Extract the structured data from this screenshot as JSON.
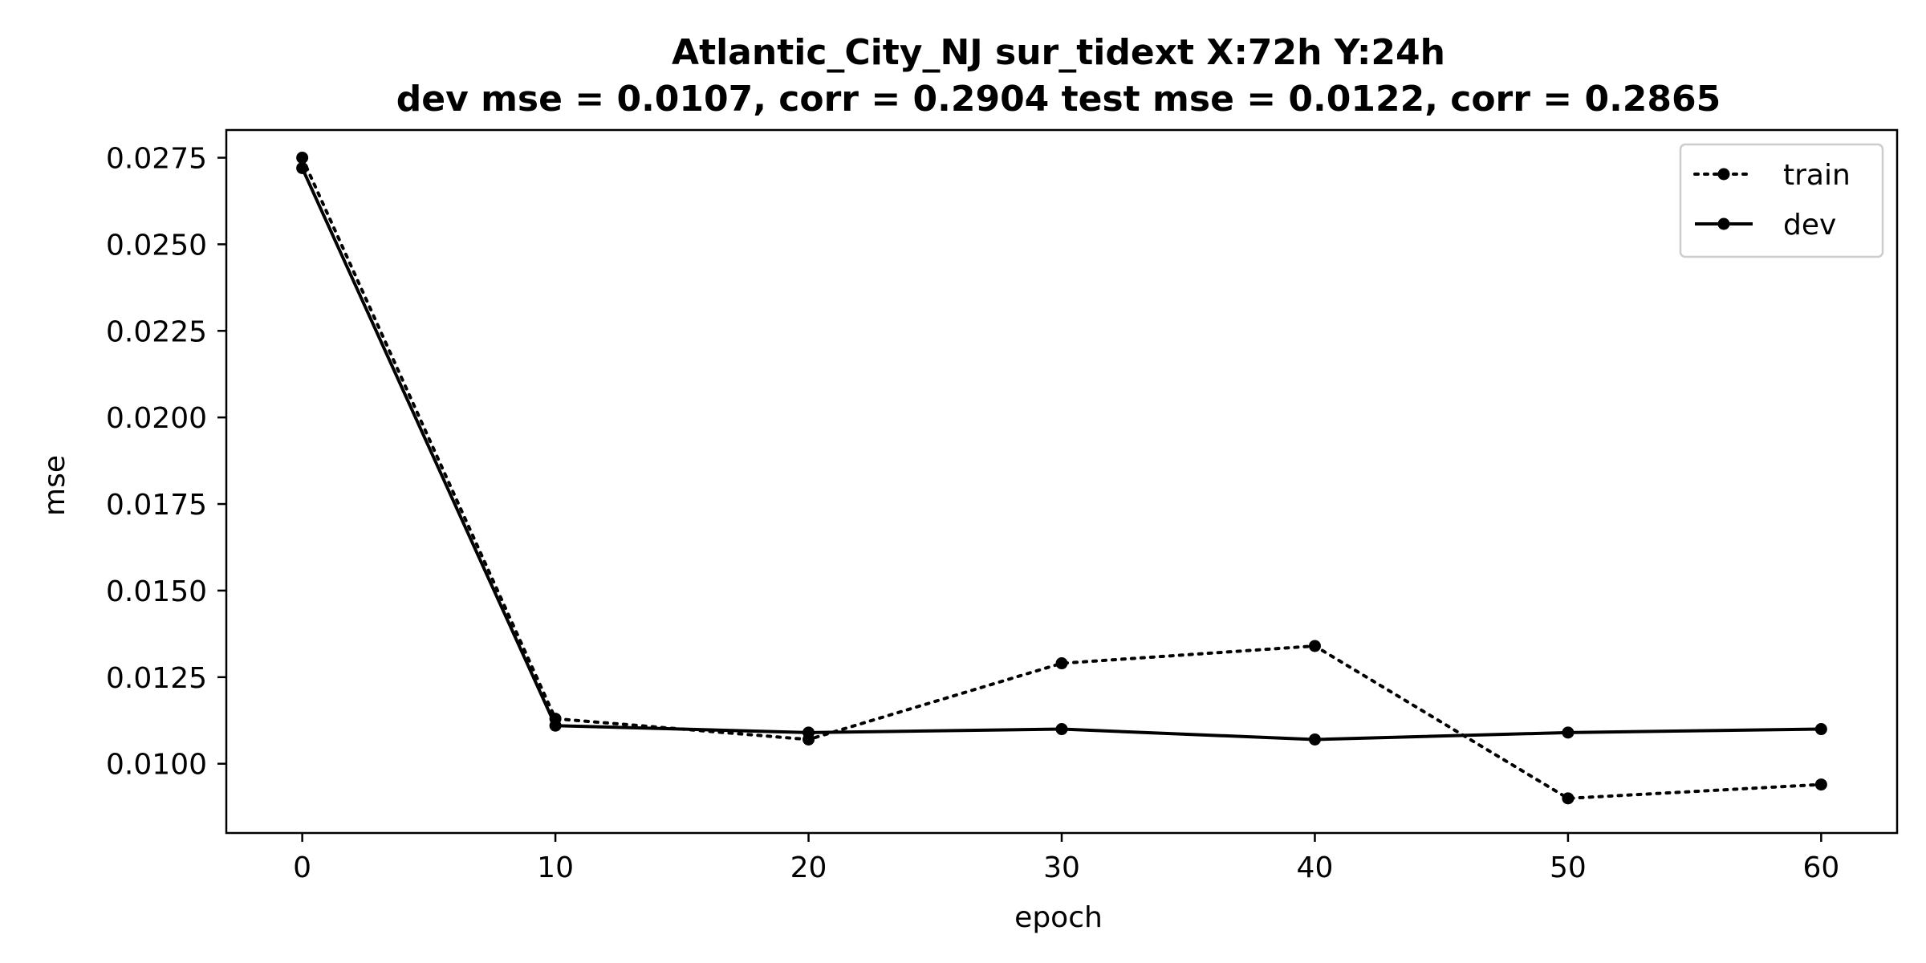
{
  "chart_data": {
    "type": "line",
    "title_line1": "Atlantic_City_NJ   sur_tidext   X:72h   Y:24h",
    "title_line2": "dev mse = 0.0107, corr = 0.2904   test mse = 0.0122, corr = 0.2865",
    "xlabel": "epoch",
    "ylabel": "mse",
    "xlim": [
      -3,
      63
    ],
    "ylim": [
      0.008,
      0.0283
    ],
    "x_ticks": [
      0,
      10,
      20,
      30,
      40,
      50,
      60
    ],
    "y_ticks": [
      0.01,
      0.0125,
      0.015,
      0.0175,
      0.02,
      0.0225,
      0.025,
      0.0275
    ],
    "y_tick_labels": [
      "0.0100",
      "0.0125",
      "0.0150",
      "0.0175",
      "0.0200",
      "0.0225",
      "0.0250",
      "0.0275"
    ],
    "x_tick_labels": [
      "0",
      "10",
      "20",
      "30",
      "40",
      "50",
      "60"
    ],
    "x": [
      0,
      10,
      20,
      30,
      40,
      50,
      60
    ],
    "series": [
      {
        "name": "train",
        "style": "dotted",
        "color": "#000000",
        "values": [
          0.0275,
          0.0113,
          0.0107,
          0.0129,
          0.0134,
          0.009,
          0.0094
        ]
      },
      {
        "name": "dev",
        "style": "solid",
        "color": "#000000",
        "values": [
          0.0272,
          0.0111,
          0.0109,
          0.011,
          0.0107,
          0.0109,
          0.011
        ]
      }
    ],
    "legend_position": "top-right",
    "grid": false
  }
}
